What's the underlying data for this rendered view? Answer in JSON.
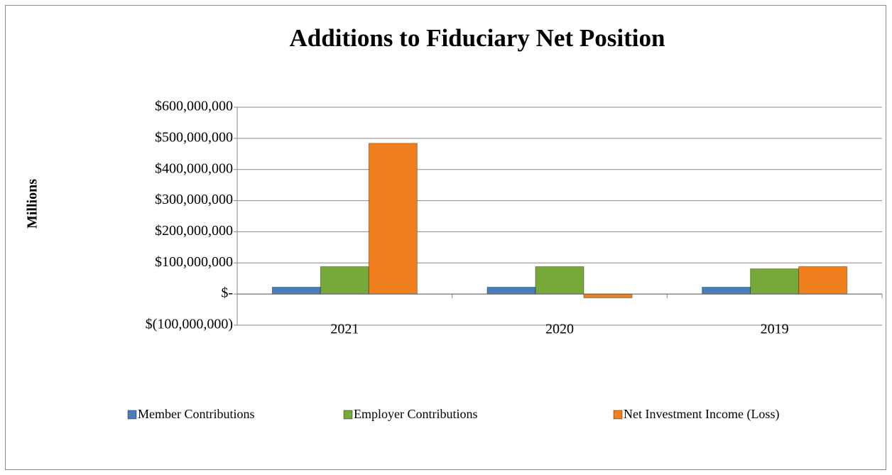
{
  "chart_data": {
    "type": "bar",
    "title": "Additions to Fiduciary Net Position",
    "y_label": "Millions",
    "categories": [
      "2021",
      "2020",
      "2019"
    ],
    "series": [
      {
        "name": "Member Contributions",
        "color": "#4a7ebb",
        "values": [
          22000000,
          22000000,
          22000000
        ]
      },
      {
        "name": "Employer Contributions",
        "color": "#77a83a",
        "values": [
          88000000,
          88000000,
          81000000
        ]
      },
      {
        "name": "Net Investment Income (Loss)",
        "color": "#f07f1e",
        "values": [
          484000000,
          -12000000,
          88000000
        ]
      }
    ],
    "ylim": [
      -100000000,
      600000000
    ],
    "yticks": [
      {
        "value": -100000000,
        "label": "$(100,000,000)"
      },
      {
        "value": 0,
        "label": "$-"
      },
      {
        "value": 100000000,
        "label": "$100,000,000"
      },
      {
        "value": 200000000,
        "label": "$200,000,000"
      },
      {
        "value": 300000000,
        "label": "$300,000,000"
      },
      {
        "value": 400000000,
        "label": "$400,000,000"
      },
      {
        "value": 500000000,
        "label": "$500,000,000"
      },
      {
        "value": 600000000,
        "label": "$600,000,000"
      }
    ],
    "grid": true,
    "legend": "bottom"
  }
}
